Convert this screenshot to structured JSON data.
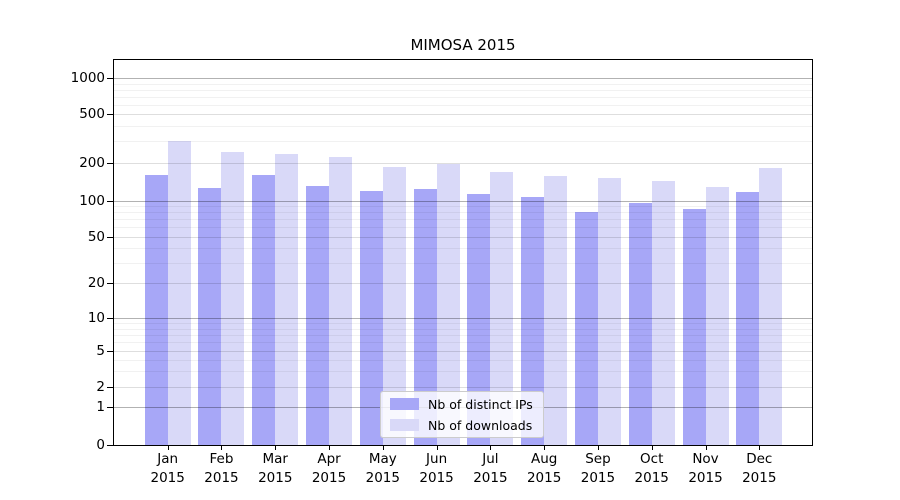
{
  "chart_data": {
    "type": "bar",
    "title": "MIMOSA 2015",
    "year": "2015",
    "categories": [
      "Jan",
      "Feb",
      "Mar",
      "Apr",
      "May",
      "Jun",
      "Jul",
      "Aug",
      "Sep",
      "Oct",
      "Nov",
      "Dec"
    ],
    "series": [
      {
        "name": "Nb of distinct IPs",
        "color": "#a7a7f7",
        "values": [
          160,
          125,
          161,
          130,
          120,
          123,
          114,
          107,
          80,
          95,
          86,
          117
        ]
      },
      {
        "name": "Nb of downloads",
        "color": "#d9d9f8",
        "values": [
          300,
          245,
          235,
          224,
          185,
          197,
          170,
          158,
          150,
          144,
          129,
          180
        ]
      }
    ],
    "y_ticks": [
      0,
      1,
      2,
      5,
      10,
      20,
      50,
      100,
      200,
      500,
      1000
    ],
    "ylim": [
      0,
      1450
    ],
    "yscale": "symlog",
    "grid": "both",
    "legend_position": "lower center",
    "xlabel": "",
    "ylabel": ""
  }
}
